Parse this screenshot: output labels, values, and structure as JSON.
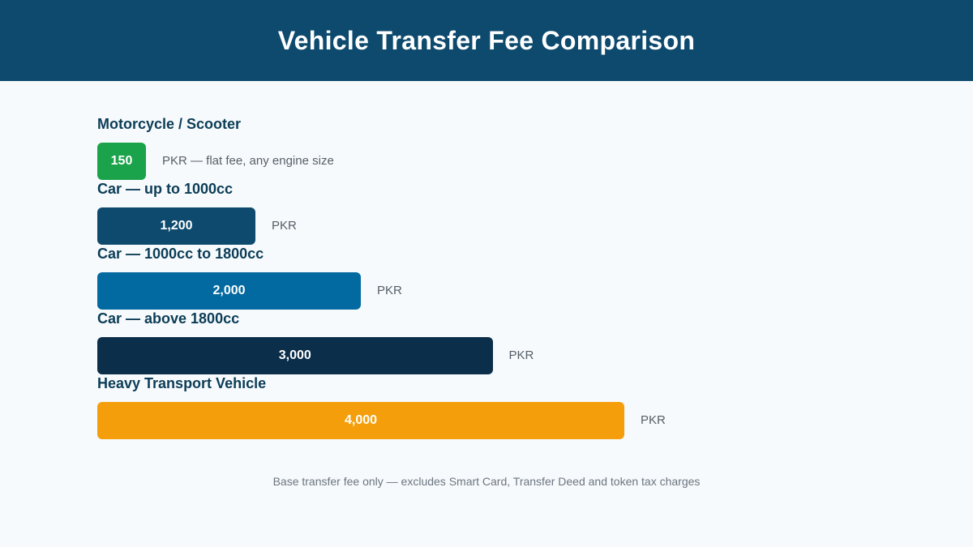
{
  "title": "Vehicle Transfer Fee Comparison",
  "footnote": "Base transfer fee only — excludes Smart Card, Transfer Deed and token tax charges",
  "chart_data": {
    "type": "bar",
    "orientation": "horizontal",
    "title": "Vehicle Transfer Fee Comparison",
    "unit": "PKR",
    "categories": [
      "Motorcycle / Scooter",
      "Car — up to 1000cc",
      "Car — 1000cc to 1800cc",
      "Car — above 1800cc",
      "Heavy Transport Vehicle"
    ],
    "values": [
      150,
      1200,
      2000,
      3000,
      4000
    ],
    "value_labels": [
      "150",
      "1,200",
      "2,000",
      "3,000",
      "4,000"
    ],
    "notes": [
      "PKR — flat fee, any engine size",
      "PKR",
      "PKR",
      "PKR",
      "PKR"
    ],
    "colors": [
      "#1aa34a",
      "#0d4a6e",
      "#0369a1",
      "#0b2e4a",
      "#f59e0b"
    ],
    "grid": false,
    "legend": "none"
  }
}
